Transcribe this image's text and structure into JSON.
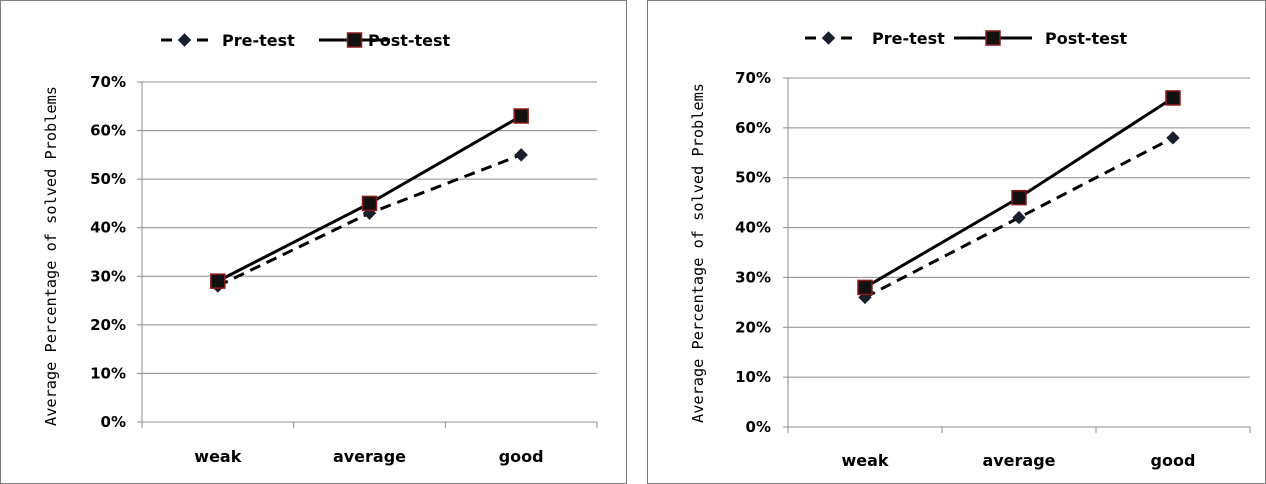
{
  "colors": {
    "line": "#000000",
    "marker_fill": "#111111",
    "marker_stroke": "#8b1a1a",
    "grid": "#8c8c8c",
    "border": "#7f7f7f"
  },
  "chart_data": [
    {
      "type": "line",
      "title": "",
      "xlabel": "",
      "ylabel": "Average Percentage of solved Problems",
      "categories": [
        "weak",
        "average",
        "good"
      ],
      "ylim": [
        0,
        0.7
      ],
      "yticks": [
        "0%",
        "10%",
        "20%",
        "30%",
        "40%",
        "50%",
        "60%",
        "70%"
      ],
      "grid": true,
      "legend": "top",
      "series": [
        {
          "name": "Pre-test",
          "values": [
            0.28,
            0.43,
            0.55
          ],
          "style": "dashed",
          "marker": "diamond-icon"
        },
        {
          "name": "Post-test",
          "values": [
            0.29,
            0.45,
            0.63
          ],
          "style": "solid",
          "marker": "square-icon"
        }
      ]
    },
    {
      "type": "line",
      "title": "",
      "xlabel": "",
      "ylabel": "Average Percentage of solved Problems",
      "categories": [
        "weak",
        "average",
        "good"
      ],
      "ylim": [
        0,
        0.7
      ],
      "yticks": [
        "0%",
        "10%",
        "20%",
        "30%",
        "40%",
        "50%",
        "60%",
        "70%"
      ],
      "grid": true,
      "legend": "top",
      "series": [
        {
          "name": "Pre-test",
          "values": [
            0.26,
            0.42,
            0.58
          ],
          "style": "dashed",
          "marker": "diamond-icon"
        },
        {
          "name": "Post-test",
          "values": [
            0.28,
            0.46,
            0.66
          ],
          "style": "solid",
          "marker": "square-icon"
        }
      ]
    }
  ]
}
